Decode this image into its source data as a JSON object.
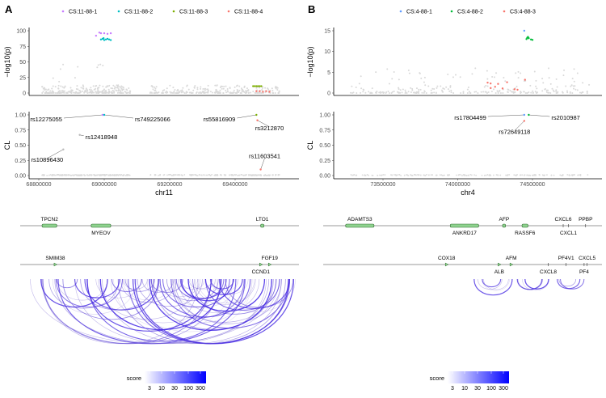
{
  "panels": [
    {
      "label": "A",
      "legend": [
        {
          "name": "CS:11-88-1",
          "color": "#C77CFF"
        },
        {
          "name": "CS:11-88-2",
          "color": "#00BFC4"
        },
        {
          "name": "CS:11-88-3",
          "color": "#7CAE00"
        },
        {
          "name": "CS:11-88-4",
          "color": "#F8766D"
        }
      ],
      "xlabel": "chr11",
      "xlim": [
        68770000,
        69590000
      ],
      "xticks": [
        68800000,
        69000000,
        69200000,
        69400000
      ],
      "manhattan": {
        "ylabel": "−log10(p)",
        "ylim": [
          0,
          100
        ],
        "yticks": [
          "0",
          "25",
          "50",
          "75",
          "100"
        ],
        "highlight": [
          {
            "cs": 0,
            "x": [
              68985000,
              68990000,
              69000000,
              69010000,
              69020000,
              68975000
            ],
            "y": [
              97,
              96,
              96,
              95,
              96,
              92
            ]
          },
          {
            "cs": 1,
            "x": [
              68990000,
              68995000,
              69000000,
              69005000,
              69010000,
              69015000,
              69020000,
              68998000
            ],
            "y": [
              86,
              87,
              85,
              86,
              87,
              86,
              85,
              88
            ]
          },
          {
            "cs": 2,
            "x": [
              69455000,
              69460000,
              69465000,
              69470000,
              69475000,
              69480000
            ],
            "y": [
              11,
              11,
              11,
              11,
              11,
              11
            ]
          },
          {
            "cs": 3,
            "x": [
              69465000,
              69475000,
              69485000,
              69495000,
              69505000
            ],
            "y": [
              3,
              3,
              2,
              3,
              2
            ]
          }
        ]
      },
      "cl": {
        "ylabel": "CL",
        "ylim": [
          0,
          1
        ],
        "yticks": [
          "0.00",
          "0.25",
          "0.50",
          "0.75",
          "1.00"
        ],
        "snps": [
          {
            "id": "rs12275055",
            "x": 68995000,
            "y": 1.0,
            "cs": 0
          },
          {
            "id": "rs749225066",
            "x": 69000000,
            "y": 1.0,
            "cs": 1
          },
          {
            "id": "rs12418948",
            "x": 68925000,
            "y": 0.67,
            "cs": -1
          },
          {
            "id": "rs10896430",
            "x": 68875000,
            "y": 0.43,
            "cs": -1
          },
          {
            "id": "rs55816909",
            "x": 69465000,
            "y": 1.0,
            "cs": 2
          },
          {
            "id": "rs3212870",
            "x": 69468000,
            "y": 0.91,
            "cs": 3
          },
          {
            "id": "rs11603541",
            "x": 69478000,
            "y": 0.1,
            "cs": 3
          }
        ]
      },
      "genes": [
        {
          "name": "TPCN2",
          "track": 0,
          "start": 68810000,
          "end": 68855000,
          "pos": "above",
          "type": "box"
        },
        {
          "name": "MYEOV",
          "track": 0,
          "start": 68960000,
          "end": 69020000,
          "pos": "below",
          "type": "box"
        },
        {
          "name": "LTO1",
          "track": 0,
          "start": 69478000,
          "end": 69488000,
          "pos": "above",
          "type": "box"
        },
        {
          "name": "SMIM38",
          "track": 1,
          "start": 68848000,
          "end": 68852000,
          "pos": "above",
          "type": "tri"
        },
        {
          "name": "CCND1",
          "track": 1,
          "start": 69475000,
          "end": 69482000,
          "pos": "below",
          "type": "tri"
        },
        {
          "name": "FGF19",
          "track": 1,
          "start": 69503000,
          "end": 69506000,
          "pos": "above",
          "type": "tri"
        }
      ]
    },
    {
      "label": "B",
      "legend": [
        {
          "name": "CS:4-88-1",
          "color": "#619CFF"
        },
        {
          "name": "CS:4-88-2",
          "color": "#00BA38"
        },
        {
          "name": "CS:4-88-3",
          "color": "#F8766D"
        }
      ],
      "xlabel": "chr4",
      "xlim": [
        73180000,
        74980000
      ],
      "xticks": [
        73500000,
        74000000,
        74500000
      ],
      "manhattan": {
        "ylabel": "−log10(p)",
        "ylim": [
          0,
          15
        ],
        "yticks": [
          "0",
          "5",
          "10",
          "15"
        ],
        "highlight": [
          {
            "cs": 0,
            "x": [
              74445000
            ],
            "y": [
              15
            ]
          },
          {
            "cs": 1,
            "x": [
              74460000,
              74465000,
              74470000,
              74475000,
              74490000,
              74500000
            ],
            "y": [
              13.0,
              13.3,
              13.5,
              13.2,
              12.9,
              12.8
            ]
          },
          {
            "cs": 2,
            "x": [
              74200000,
              74220000,
              74250000,
              74270000,
              74300000,
              74330000,
              74380000,
              74400000,
              74450000,
              74220000
            ],
            "y": [
              2.5,
              1.2,
              1.5,
              2.2,
              1.1,
              2.6,
              0.9,
              0.8,
              3.2,
              2.3
            ]
          }
        ]
      },
      "cl": {
        "ylabel": "CL",
        "ylim": [
          0,
          1
        ],
        "yticks": [
          "0.00",
          "0.25",
          "0.50",
          "0.75",
          "1.00"
        ],
        "snps": [
          {
            "id": "rs17804499",
            "x": 74445000,
            "y": 1.0,
            "cs": 0
          },
          {
            "id": "rs2010987",
            "x": 74475000,
            "y": 1.0,
            "cs": 1
          },
          {
            "id": "rs72649118",
            "x": 74445000,
            "y": 0.9,
            "cs": 2
          }
        ]
      },
      "genes": [
        {
          "name": "ADAMTS3",
          "track": 0,
          "start": 73250000,
          "end": 73440000,
          "pos": "above",
          "type": "box"
        },
        {
          "name": "ANKRD17",
          "track": 0,
          "start": 73950000,
          "end": 74140000,
          "pos": "below",
          "type": "box"
        },
        {
          "name": "AFP",
          "track": 0,
          "start": 74300000,
          "end": 74320000,
          "pos": "above",
          "type": "box"
        },
        {
          "name": "RASSF6",
          "track": 0,
          "start": 74430000,
          "end": 74470000,
          "pos": "below",
          "type": "box"
        },
        {
          "name": "CXCL6",
          "track": 0,
          "start": 74700000,
          "end": 74703000,
          "pos": "above",
          "type": "tick"
        },
        {
          "name": "CXCL1",
          "track": 0,
          "start": 74735000,
          "end": 74738000,
          "pos": "below",
          "type": "tick"
        },
        {
          "name": "PPBP",
          "track": 0,
          "start": 74850000,
          "end": 74853000,
          "pos": "above",
          "type": "tick"
        },
        {
          "name": "COX18",
          "track": 1,
          "start": 73920000,
          "end": 73925000,
          "pos": "above",
          "type": "tri"
        },
        {
          "name": "ALB",
          "track": 1,
          "start": 74270000,
          "end": 74285000,
          "pos": "below",
          "type": "tri"
        },
        {
          "name": "AFM",
          "track": 1,
          "start": 74350000,
          "end": 74365000,
          "pos": "above",
          "type": "tri"
        },
        {
          "name": "CXCL8",
          "track": 1,
          "start": 74600000,
          "end": 74603000,
          "pos": "below",
          "type": "tick"
        },
        {
          "name": "PF4V1",
          "track": 1,
          "start": 74720000,
          "end": 74723000,
          "pos": "above",
          "type": "tick"
        },
        {
          "name": "PF4",
          "track": 1,
          "start": 74840000,
          "end": 74843000,
          "pos": "below",
          "type": "tick"
        },
        {
          "name": "CXCL5",
          "track": 1,
          "start": 74860000,
          "end": 74863000,
          "pos": "above",
          "type": "tick"
        }
      ]
    }
  ],
  "score_legend": {
    "title": "score",
    "ticks": [
      "3",
      "10",
      "30",
      "100",
      "300"
    ],
    "low_color": "#FFFFFF",
    "high_color": "#0000FF"
  },
  "chart_data": [
    {
      "type": "scatter",
      "title": "A",
      "xlabel": "chr11",
      "ylabel": "−log10(p)",
      "ylim": [
        0,
        100
      ]
    },
    {
      "type": "scatter",
      "title": "A",
      "xlabel": "chr11",
      "ylabel": "CL",
      "ylim": [
        0,
        1
      ]
    },
    {
      "type": "scatter",
      "title": "B",
      "xlabel": "chr4",
      "ylabel": "−log10(p)",
      "ylim": [
        0,
        15
      ]
    },
    {
      "type": "scatter",
      "title": "B",
      "xlabel": "chr4",
      "ylabel": "CL",
      "ylim": [
        0,
        1
      ]
    }
  ]
}
